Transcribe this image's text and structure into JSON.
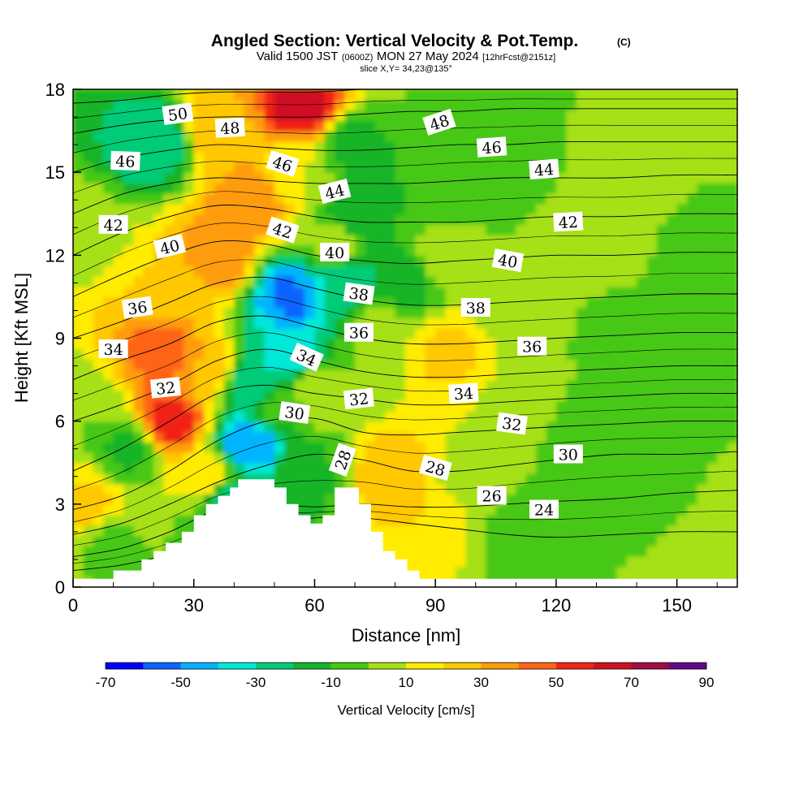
{
  "chart_data": {
    "type": "heatmap",
    "title": "Angled Section: Vertical Velocity & Pot.Temp.",
    "title_badge": "(C)",
    "subtitle_prefix": "Valid 1500 JST",
    "subtitle_utc": "(0600Z)",
    "subtitle_date": "MON 27 May 2024",
    "subtitle_fcst": "[12hrFcst@2151z]",
    "slice_label": "slice X,Y= 34,23@135°",
    "xlabel": "Distance [nm]",
    "ylabel": "Height [Kft MSL]",
    "xlim": [
      0,
      165
    ],
    "ylim": [
      0,
      18
    ],
    "x_ticks": [
      "0",
      "30",
      "60",
      "90",
      "120",
      "150"
    ],
    "y_ticks": [
      "0",
      "3",
      "6",
      "9",
      "12",
      "15",
      "18"
    ],
    "colorbar": {
      "label": "Vertical Velocity [cm/s]",
      "min": -70,
      "max": 90,
      "step": 10,
      "tick_labels": [
        "-70",
        "-50",
        "-30",
        "-10",
        "10",
        "30",
        "50",
        "70",
        "90"
      ],
      "colors": [
        "#0000ff",
        "#0a64ff",
        "#00b4ff",
        "#00e8d8",
        "#00cc78",
        "#14b428",
        "#46c814",
        "#a6e016",
        "#ffec00",
        "#ffc800",
        "#ff9c0a",
        "#ff6414",
        "#f02414",
        "#d01020",
        "#a00c44",
        "#640a84"
      ]
    },
    "terrain": {
      "x": [
        0,
        10,
        10,
        17,
        17,
        20,
        20,
        23,
        23,
        27,
        27,
        30,
        30,
        33,
        33,
        36,
        36,
        39,
        39,
        41,
        41,
        43,
        43,
        46,
        46,
        50,
        50,
        53,
        53,
        56,
        56,
        59,
        59,
        62,
        62,
        65,
        65,
        71,
        71,
        74,
        74,
        77,
        77,
        80,
        80,
        83,
        83,
        86,
        86,
        88,
        88,
        165
      ],
      "y": [
        0.3,
        0.3,
        0.6,
        0.6,
        1.0,
        1.0,
        1.3,
        1.3,
        1.6,
        1.6,
        2.0,
        2.0,
        2.6,
        2.6,
        3.0,
        3.0,
        3.3,
        3.3,
        3.6,
        3.6,
        3.9,
        3.9,
        3.9,
        3.9,
        3.9,
        3.9,
        3.6,
        3.6,
        3.0,
        3.0,
        2.6,
        2.6,
        2.3,
        2.3,
        2.6,
        2.6,
        3.6,
        3.6,
        3.0,
        3.0,
        2.0,
        2.0,
        1.3,
        1.3,
        1.0,
        1.0,
        0.6,
        0.6,
        0.3,
        0.3,
        0.3,
        0.3
      ]
    },
    "vertical_velocity_field": [
      {
        "x": 3,
        "y": 6.5,
        "value": 0
      },
      {
        "x": 3,
        "y": 13,
        "value": 3
      },
      {
        "x": 4,
        "y": 3,
        "value": 22
      },
      {
        "x": 9,
        "y": 1.6,
        "value": -2
      },
      {
        "x": 14,
        "y": 5,
        "value": -12
      },
      {
        "x": 20,
        "y": 16,
        "value": -28
      },
      {
        "x": 24,
        "y": 6,
        "value": 55
      },
      {
        "x": 22,
        "y": 8.5,
        "value": 45
      },
      {
        "x": 22,
        "y": 11,
        "value": 20
      },
      {
        "x": 33,
        "y": 8,
        "value": 30
      },
      {
        "x": 36,
        "y": 12,
        "value": 38
      },
      {
        "x": 45,
        "y": 14,
        "value": 40
      },
      {
        "x": 37,
        "y": 16.5,
        "value": 28
      },
      {
        "x": 57,
        "y": 17.5,
        "value": 65
      },
      {
        "x": 55,
        "y": 15,
        "value": 10
      },
      {
        "x": 33,
        "y": 4,
        "value": 20
      },
      {
        "x": 38,
        "y": 3.2,
        "value": -22
      },
      {
        "x": 44,
        "y": 5.2,
        "value": -50
      },
      {
        "x": 45,
        "y": 7.5,
        "value": -28
      },
      {
        "x": 54,
        "y": 10.5,
        "value": -52
      },
      {
        "x": 53,
        "y": 8.5,
        "value": -35
      },
      {
        "x": 51,
        "y": 6.5,
        "value": -8
      },
      {
        "x": 58,
        "y": 4,
        "value": -12
      },
      {
        "x": 61,
        "y": 7,
        "value": 8
      },
      {
        "x": 65,
        "y": 12.5,
        "value": 5
      },
      {
        "x": 68,
        "y": 11,
        "value": -28
      },
      {
        "x": 70,
        "y": 13.5,
        "value": -18
      },
      {
        "x": 70,
        "y": 16,
        "value": -12
      },
      {
        "x": 76,
        "y": 9.5,
        "value": 6
      },
      {
        "x": 82,
        "y": 11,
        "value": -16
      },
      {
        "x": 84,
        "y": 14.5,
        "value": -10
      },
      {
        "x": 79,
        "y": 4,
        "value": 28
      },
      {
        "x": 86,
        "y": 2.5,
        "value": 20
      },
      {
        "x": 93,
        "y": 8.5,
        "value": 22
      },
      {
        "x": 92,
        "y": 12,
        "value": 5
      },
      {
        "x": 97,
        "y": 4,
        "value": 8
      },
      {
        "x": 104,
        "y": 15,
        "value": -10
      },
      {
        "x": 110,
        "y": 10,
        "value": 5
      },
      {
        "x": 110,
        "y": 6.5,
        "value": 8
      },
      {
        "x": 112,
        "y": 2,
        "value": -5
      },
      {
        "x": 126,
        "y": 12.5,
        "value": 6
      },
      {
        "x": 126,
        "y": 5.5,
        "value": -6
      },
      {
        "x": 136,
        "y": 9,
        "value": -3
      },
      {
        "x": 138,
        "y": 15,
        "value": 4
      },
      {
        "x": 144,
        "y": 3,
        "value": -3
      },
      {
        "x": 156,
        "y": 1.5,
        "value": 6
      },
      {
        "x": 160,
        "y": 12,
        "value": -5
      },
      {
        "x": 162,
        "y": 17,
        "value": 2
      }
    ],
    "potential_temperature_levels": [
      {
        "value": 24,
        "heights": [
          0.6,
          0.8,
          1.2,
          1.8,
          2.2,
          2.5,
          2.5,
          2.3,
          2.1,
          1.9,
          1.8,
          1.9,
          2.0,
          2.0
        ]
      },
      {
        "value": 26,
        "heights": [
          1.1,
          1.4,
          2.0,
          2.8,
          3.0,
          2.9,
          3.0,
          2.9,
          2.9,
          3.0,
          3.1,
          3.2,
          3.4,
          3.5
        ]
      },
      {
        "value": 28,
        "heights": [
          1.9,
          2.3,
          3.0,
          3.8,
          4.4,
          4.8,
          4.6,
          4.2,
          4.2,
          4.4,
          4.6,
          4.8,
          4.8,
          4.9
        ]
      },
      {
        "value": 30,
        "heights": [
          2.8,
          3.3,
          4.2,
          5.3,
          6.0,
          6.1,
          5.6,
          5.5,
          5.6,
          5.7,
          5.8,
          5.9,
          6.0,
          6.0
        ]
      },
      {
        "value": 32,
        "heights": [
          4.2,
          5.0,
          6.0,
          7.0,
          7.3,
          7.0,
          6.8,
          6.6,
          6.6,
          6.7,
          6.8,
          6.9,
          7.0,
          7.0
        ]
      },
      {
        "value": 34,
        "heights": [
          6.0,
          6.6,
          7.3,
          8.2,
          8.6,
          8.2,
          7.8,
          7.6,
          7.6,
          7.7,
          7.8,
          7.9,
          8.0,
          8.0
        ]
      },
      {
        "value": 36,
        "heights": [
          7.5,
          8.2,
          8.8,
          9.6,
          9.8,
          9.4,
          9.0,
          8.8,
          8.8,
          8.9,
          9.0,
          9.1,
          9.2,
          9.2
        ]
      },
      {
        "value": 38,
        "heights": [
          9.0,
          9.6,
          10.3,
          11.0,
          11.2,
          10.8,
          10.4,
          10.2,
          10.2,
          10.3,
          10.4,
          10.5,
          10.6,
          10.6
        ]
      },
      {
        "value": 40,
        "heights": [
          10.5,
          11.3,
          12.0,
          12.5,
          12.4,
          12.0,
          11.8,
          11.7,
          11.8,
          11.9,
          12.0,
          12.0,
          12.1,
          12.1
        ]
      },
      {
        "value": 42,
        "heights": [
          12.0,
          12.8,
          13.4,
          13.8,
          13.7,
          13.4,
          13.2,
          13.2,
          13.2,
          13.3,
          13.4,
          13.4,
          13.5,
          13.5
        ]
      },
      {
        "value": 44,
        "heights": [
          13.5,
          14.2,
          14.6,
          14.8,
          14.7,
          14.6,
          14.6,
          14.6,
          14.7,
          14.8,
          14.8,
          14.8,
          14.9,
          14.9
        ]
      },
      {
        "value": 46,
        "heights": [
          15.0,
          15.5,
          15.8,
          16.0,
          15.9,
          15.8,
          15.8,
          15.9,
          16.0,
          16.0,
          16.1,
          16.1,
          16.1,
          16.1
        ]
      },
      {
        "value": 48,
        "heights": [
          16.4,
          16.7,
          16.9,
          17.0,
          17.0,
          17.0,
          17.1,
          17.2,
          17.2,
          17.3,
          17.3,
          17.3,
          17.3,
          17.3
        ]
      },
      {
        "value": 50,
        "heights": [
          17.5,
          17.6,
          17.8,
          17.9,
          17.9,
          17.9,
          18.0,
          18.0,
          18.0,
          18.0,
          18.0,
          18.0,
          18.0,
          18.0
        ]
      }
    ],
    "potential_temperature_x": [
      0,
      12,
      24,
      36,
      48,
      60,
      72,
      84,
      96,
      108,
      120,
      135,
      150,
      165
    ],
    "contour_labels": [
      {
        "text": "50",
        "x": 26,
        "y": 17.1,
        "angle": -8
      },
      {
        "text": "48",
        "x": 39,
        "y": 16.6,
        "angle": -3
      },
      {
        "text": "46",
        "x": 13,
        "y": 15.4,
        "angle": 2
      },
      {
        "text": "46",
        "x": 52,
        "y": 15.3,
        "angle": 18
      },
      {
        "text": "48",
        "x": 91,
        "y": 16.8,
        "angle": -18
      },
      {
        "text": "46",
        "x": 104,
        "y": 15.9,
        "angle": -4
      },
      {
        "text": "44",
        "x": 117,
        "y": 15.1,
        "angle": -4
      },
      {
        "text": "44",
        "x": 65,
        "y": 14.3,
        "angle": -14
      },
      {
        "text": "42",
        "x": 10,
        "y": 13.1,
        "angle": 0
      },
      {
        "text": "40",
        "x": 24,
        "y": 12.3,
        "angle": -14
      },
      {
        "text": "42",
        "x": 52,
        "y": 12.9,
        "angle": 18
      },
      {
        "text": "42",
        "x": 123,
        "y": 13.2,
        "angle": -3
      },
      {
        "text": "40",
        "x": 65,
        "y": 12.1,
        "angle": 0
      },
      {
        "text": "40",
        "x": 108,
        "y": 11.8,
        "angle": 10
      },
      {
        "text": "38",
        "x": 71,
        "y": 10.6,
        "angle": 8
      },
      {
        "text": "38",
        "x": 100,
        "y": 10.1,
        "angle": 0
      },
      {
        "text": "36",
        "x": 16,
        "y": 10.1,
        "angle": -8
      },
      {
        "text": "36",
        "x": 71,
        "y": 9.2,
        "angle": 0
      },
      {
        "text": "36",
        "x": 114,
        "y": 8.7,
        "angle": 0
      },
      {
        "text": "34",
        "x": 10,
        "y": 8.6,
        "angle": 0
      },
      {
        "text": "34",
        "x": 58,
        "y": 8.3,
        "angle": 24
      },
      {
        "text": "34",
        "x": 97,
        "y": 7.0,
        "angle": -4
      },
      {
        "text": "32",
        "x": 23,
        "y": 7.2,
        "angle": -6
      },
      {
        "text": "32",
        "x": 71,
        "y": 6.8,
        "angle": -6
      },
      {
        "text": "32",
        "x": 109,
        "y": 5.9,
        "angle": 8
      },
      {
        "text": "30",
        "x": 55,
        "y": 6.3,
        "angle": 8
      },
      {
        "text": "30",
        "x": 123,
        "y": 4.8,
        "angle": 0
      },
      {
        "text": "28",
        "x": 67,
        "y": 4.6,
        "angle": -70
      },
      {
        "text": "28",
        "x": 90,
        "y": 4.3,
        "angle": 16
      },
      {
        "text": "26",
        "x": 104,
        "y": 3.3,
        "angle": 0
      },
      {
        "text": "24",
        "x": 117,
        "y": 2.8,
        "angle": 0
      }
    ]
  }
}
